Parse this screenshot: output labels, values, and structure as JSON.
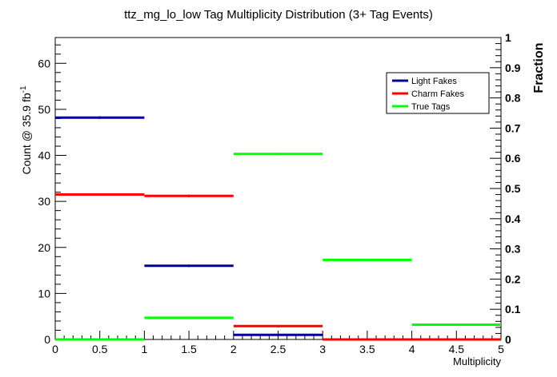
{
  "chart_data": {
    "type": "histogram",
    "title": "ttz_mg_lo_low Tag Multiplicity Distribution (3+ Tag Events)",
    "xlabel": "Multiplicity",
    "ylabel": "Count @ 35.9 fb",
    "ylabel_sup": "-1",
    "y2label": "Fraction",
    "xlim": [
      0,
      5
    ],
    "ylim": [
      0,
      65.6
    ],
    "y2lim": [
      0,
      1
    ],
    "x_ticks": [
      0,
      0.5,
      1,
      1.5,
      2,
      2.5,
      3,
      3.5,
      4,
      4.5,
      5
    ],
    "x_tick_labels": [
      "0",
      "0.5",
      "1",
      "1.5",
      "2",
      "2.5",
      "3",
      "3.5",
      "4",
      "4.5",
      "5"
    ],
    "y_ticks": [
      0,
      10,
      20,
      30,
      40,
      50,
      60
    ],
    "y_tick_labels": [
      "0",
      "10",
      "20",
      "30",
      "40",
      "50",
      "60"
    ],
    "y2_ticks": [
      0,
      0.1,
      0.2,
      0.3,
      0.4,
      0.5,
      0.6,
      0.7,
      0.8,
      0.9,
      1
    ],
    "y2_tick_labels": [
      "0",
      "0.1",
      "0.2",
      "0.3",
      "0.4",
      "0.5",
      "0.6",
      "0.7",
      "0.8",
      "0.9",
      "1"
    ],
    "bin_edges": [
      0,
      1,
      2,
      3,
      4,
      5
    ],
    "legend_position": "top-right",
    "series": [
      {
        "name": "Light Fakes",
        "color": "#000099",
        "values": [
          48.2,
          16.0,
          1.0,
          0.0,
          0.0
        ]
      },
      {
        "name": "Charm Fakes",
        "color": "#ff0000",
        "values": [
          31.5,
          31.2,
          2.9,
          0.0,
          0.0
        ]
      },
      {
        "name": "True Tags",
        "color": "#00ff00",
        "values": [
          0.0,
          4.7,
          40.3,
          17.3,
          3.2
        ]
      }
    ]
  }
}
